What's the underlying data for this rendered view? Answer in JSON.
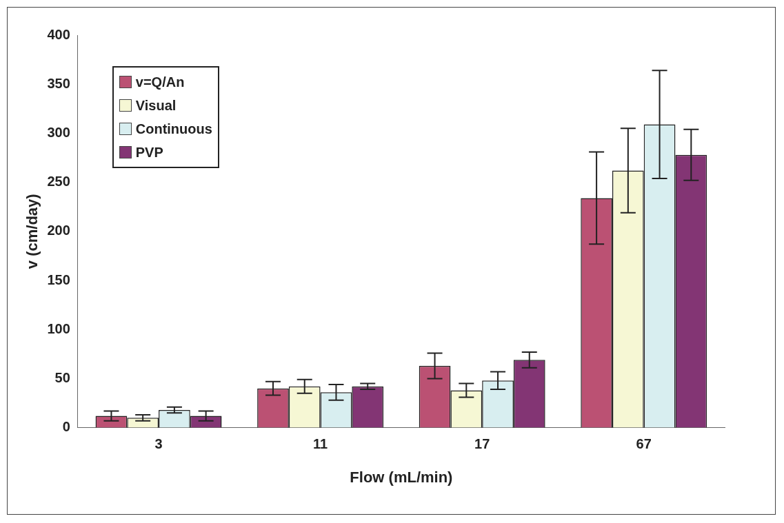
{
  "chart_data": {
    "type": "bar",
    "xlabel": "Flow (mL/min)",
    "ylabel": "v (cm/day)",
    "categories": [
      "3",
      "11",
      "17",
      "67"
    ],
    "series": [
      {
        "name": "v=Q/An",
        "color": "#bb5173",
        "values": [
          12,
          40,
          63,
          234
        ],
        "errors": [
          5,
          7,
          13,
          47
        ]
      },
      {
        "name": "Visual",
        "color": "#f6f7d4",
        "values": [
          10,
          42,
          38,
          262
        ],
        "errors": [
          3,
          7,
          7,
          43
        ]
      },
      {
        "name": "Continuous",
        "color": "#d8eef0",
        "values": [
          18,
          36,
          48,
          309
        ],
        "errors": [
          3,
          8,
          9,
          55
        ]
      },
      {
        "name": "PVP",
        "color": "#833574",
        "values": [
          12,
          42,
          69,
          278
        ],
        "errors": [
          5,
          3,
          8,
          26
        ]
      }
    ],
    "ylim": [
      0,
      400
    ],
    "yticks": [
      0,
      50,
      100,
      150,
      200,
      250,
      300,
      350,
      400
    ],
    "grid": false,
    "legend": "top left"
  }
}
